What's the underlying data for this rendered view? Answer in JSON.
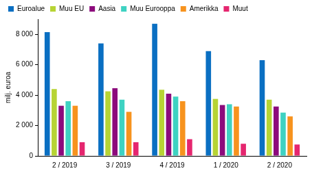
{
  "chart_data": {
    "type": "bar",
    "y_label": "milj. euroa",
    "categories": [
      "2 / 2019",
      "3 / 2019",
      "4 / 2019",
      "1 / 2020",
      "2 / 2020"
    ],
    "series": [
      {
        "name": "Euroalue",
        "color": "#0a6fc2",
        "values": [
          8150,
          7400,
          8700,
          6900,
          6300
        ]
      },
      {
        "name": "Muu EU",
        "color": "#b7d434",
        "values": [
          4400,
          4250,
          4350,
          3750,
          3700
        ]
      },
      {
        "name": "Aasia",
        "color": "#8c0b7c",
        "values": [
          3300,
          4450,
          4100,
          3350,
          3250
        ]
      },
      {
        "name": "Muu Eurooppa",
        "color": "#3ed2c2",
        "values": [
          3600,
          3700,
          3900,
          3400,
          2850
        ]
      },
      {
        "name": "Amerikka",
        "color": "#f7931e",
        "values": [
          3300,
          2900,
          3600,
          3250,
          2600
        ]
      },
      {
        "name": "Muut",
        "color": "#e5266f",
        "values": [
          900,
          900,
          1100,
          800,
          750
        ]
      }
    ],
    "ylim": [
      0,
      9000
    ],
    "yticks": [
      0,
      {
        "value": 2000,
        "label": "2 000"
      },
      {
        "value": 4000,
        "label": "4 000"
      },
      {
        "value": 6000,
        "label": "6 000"
      },
      {
        "value": 8000,
        "label": "8 000"
      }
    ],
    "grid": false,
    "legend": "top"
  }
}
